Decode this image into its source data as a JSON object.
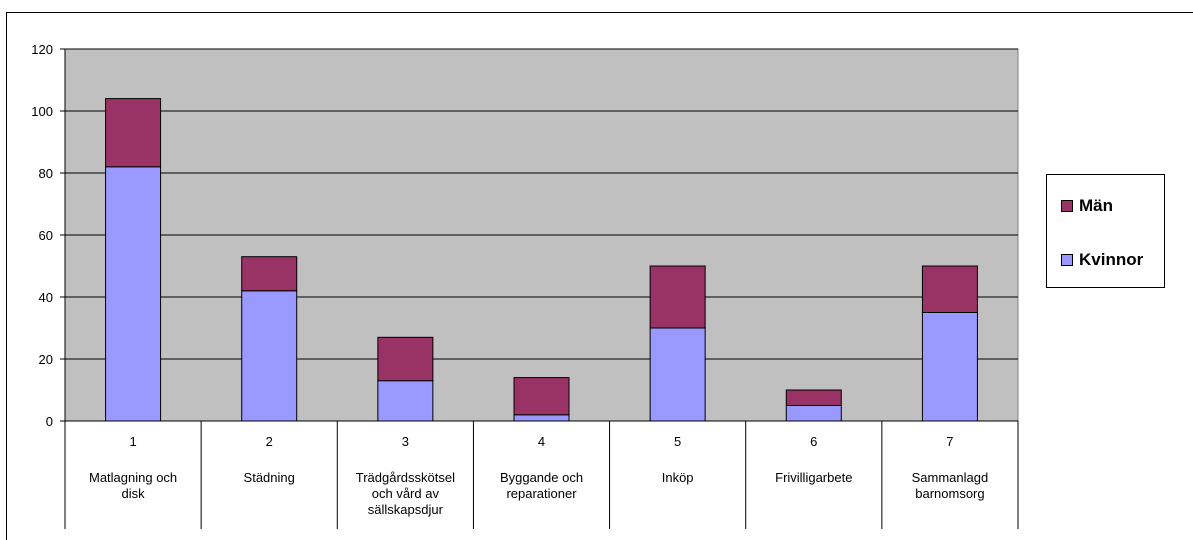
{
  "chart_data": {
    "type": "bar",
    "stacked": true,
    "categories": [
      "1",
      "2",
      "3",
      "4",
      "5",
      "6",
      "7"
    ],
    "category_labels": [
      [
        "Matlagning och",
        "disk"
      ],
      [
        "Städning"
      ],
      [
        "Trädgårdsskötsel",
        "och vård av",
        "sällskapsdjur"
      ],
      [
        "Byggande och",
        "reparationer"
      ],
      [
        "Inköp"
      ],
      [
        "Frivilligarbete"
      ],
      [
        "Sammanlagd",
        "barnomsorg"
      ]
    ],
    "series": [
      {
        "name": "Kvinnor",
        "values": [
          82,
          42,
          13,
          2,
          30,
          5,
          35
        ],
        "color": "#9999ff"
      },
      {
        "name": "Män",
        "values": [
          22,
          11,
          14,
          12,
          20,
          5,
          15
        ],
        "color": "#993366"
      }
    ],
    "ylim": [
      0,
      120
    ],
    "yticks": [
      "0",
      "20",
      "40",
      "60",
      "80",
      "100",
      "120"
    ],
    "grid": true,
    "plot_background": "#c0c0c0",
    "legend_position": "right"
  },
  "legend": {
    "items": [
      {
        "label": "Män",
        "color": "#993366"
      },
      {
        "label": "Kvinnor",
        "color": "#9999ff"
      }
    ]
  }
}
